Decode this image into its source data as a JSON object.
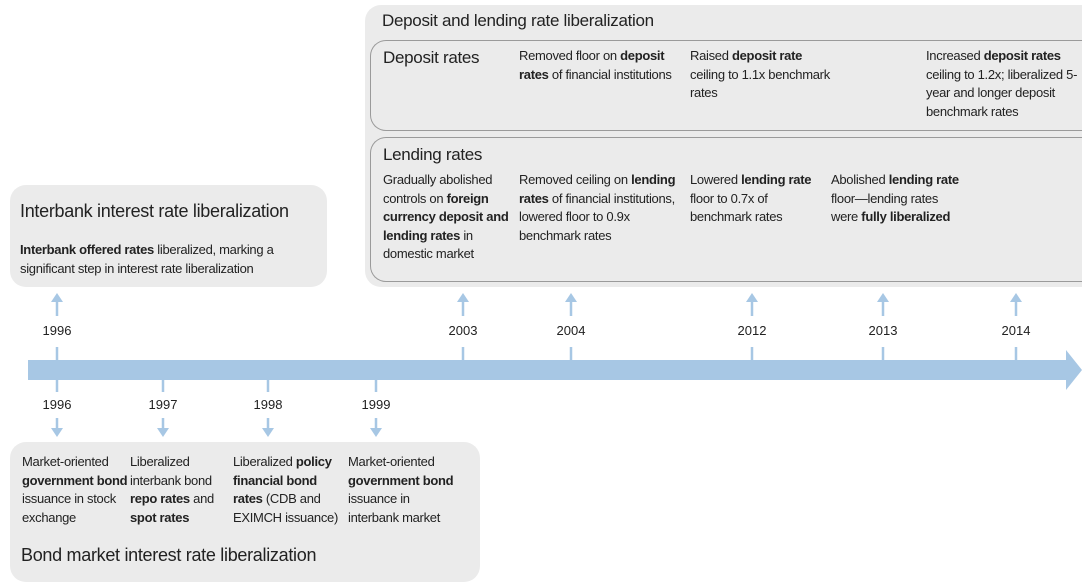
{
  "deposit_lending": {
    "title": "Deposit and lending rate liberalization",
    "deposit": {
      "label": "Deposit rates",
      "items": [
        [
          {
            "text": "Removed floor on ",
            "bold": false
          },
          {
            "text": "deposit rates",
            "bold": true
          },
          {
            "text": " of financial institutions",
            "bold": false
          }
        ],
        [
          {
            "text": "Raised ",
            "bold": false
          },
          {
            "text": "deposit rate",
            "bold": true
          },
          {
            "text": " ceiling to 1.1x benchmark rates",
            "bold": false
          }
        ],
        [
          {
            "text": "Increased ",
            "bold": false
          },
          {
            "text": "deposit rates",
            "bold": true
          },
          {
            "text": " ceiling to 1.2x; liberalized 5-year and longer deposit benchmark rates",
            "bold": false
          }
        ]
      ]
    },
    "lending": {
      "label": "Lending rates",
      "items": [
        [
          {
            "text": "Gradually abolished controls on ",
            "bold": false
          },
          {
            "text": "foreign currency deposit and lending rates",
            "bold": true
          },
          {
            "text": " in domestic market",
            "bold": false
          }
        ],
        [
          {
            "text": "Removed ceiling on ",
            "bold": false
          },
          {
            "text": "lending rates",
            "bold": true
          },
          {
            "text": " of financial institutions, lowered floor to 0.9x benchmark rates",
            "bold": false
          }
        ],
        [
          {
            "text": "Lowered ",
            "bold": false
          },
          {
            "text": "lending rate",
            "bold": true
          },
          {
            "text": " floor to 0.7x of benchmark rates",
            "bold": false
          }
        ],
        [
          {
            "text": "Abolished ",
            "bold": false
          },
          {
            "text": "lending rate",
            "bold": true
          },
          {
            "text": " floor—lending rates were ",
            "bold": false
          },
          {
            "text": "fully liberalized",
            "bold": true
          }
        ]
      ]
    }
  },
  "interbank": {
    "title": "Interbank interest rate liberalization",
    "text": [
      {
        "text": "Interbank offered rates",
        "bold": true
      },
      {
        "text": " liberalized, marking a significant step in interest rate liberalization",
        "bold": false
      }
    ]
  },
  "upper_years": [
    "1996",
    "2003",
    "2004",
    "2012",
    "2013",
    "2014"
  ],
  "lower_years": [
    "1996",
    "1997",
    "1998",
    "1999"
  ],
  "bond": {
    "title": "Bond market interest rate liberalization",
    "items": [
      [
        {
          "text": "Market-oriented ",
          "bold": false
        },
        {
          "text": "government bond",
          "bold": true
        },
        {
          "text": " issuance in stock exchange",
          "bold": false
        }
      ],
      [
        {
          "text": "Liberalized interbank bond ",
          "bold": false
        },
        {
          "text": "repo rates",
          "bold": true
        },
        {
          "text": " and ",
          "bold": false
        },
        {
          "text": "spot rates",
          "bold": true
        }
      ],
      [
        {
          "text": "Liberalized ",
          "bold": false
        },
        {
          "text": "policy financial bond rates",
          "bold": true
        },
        {
          "text": " (CDB and EXIMCH issuance)",
          "bold": false
        }
      ],
      [
        {
          "text": "Market-oriented ",
          "bold": false
        },
        {
          "text": "government bond",
          "bold": true
        },
        {
          "text": " issuance in interbank market",
          "bold": false
        }
      ]
    ]
  }
}
